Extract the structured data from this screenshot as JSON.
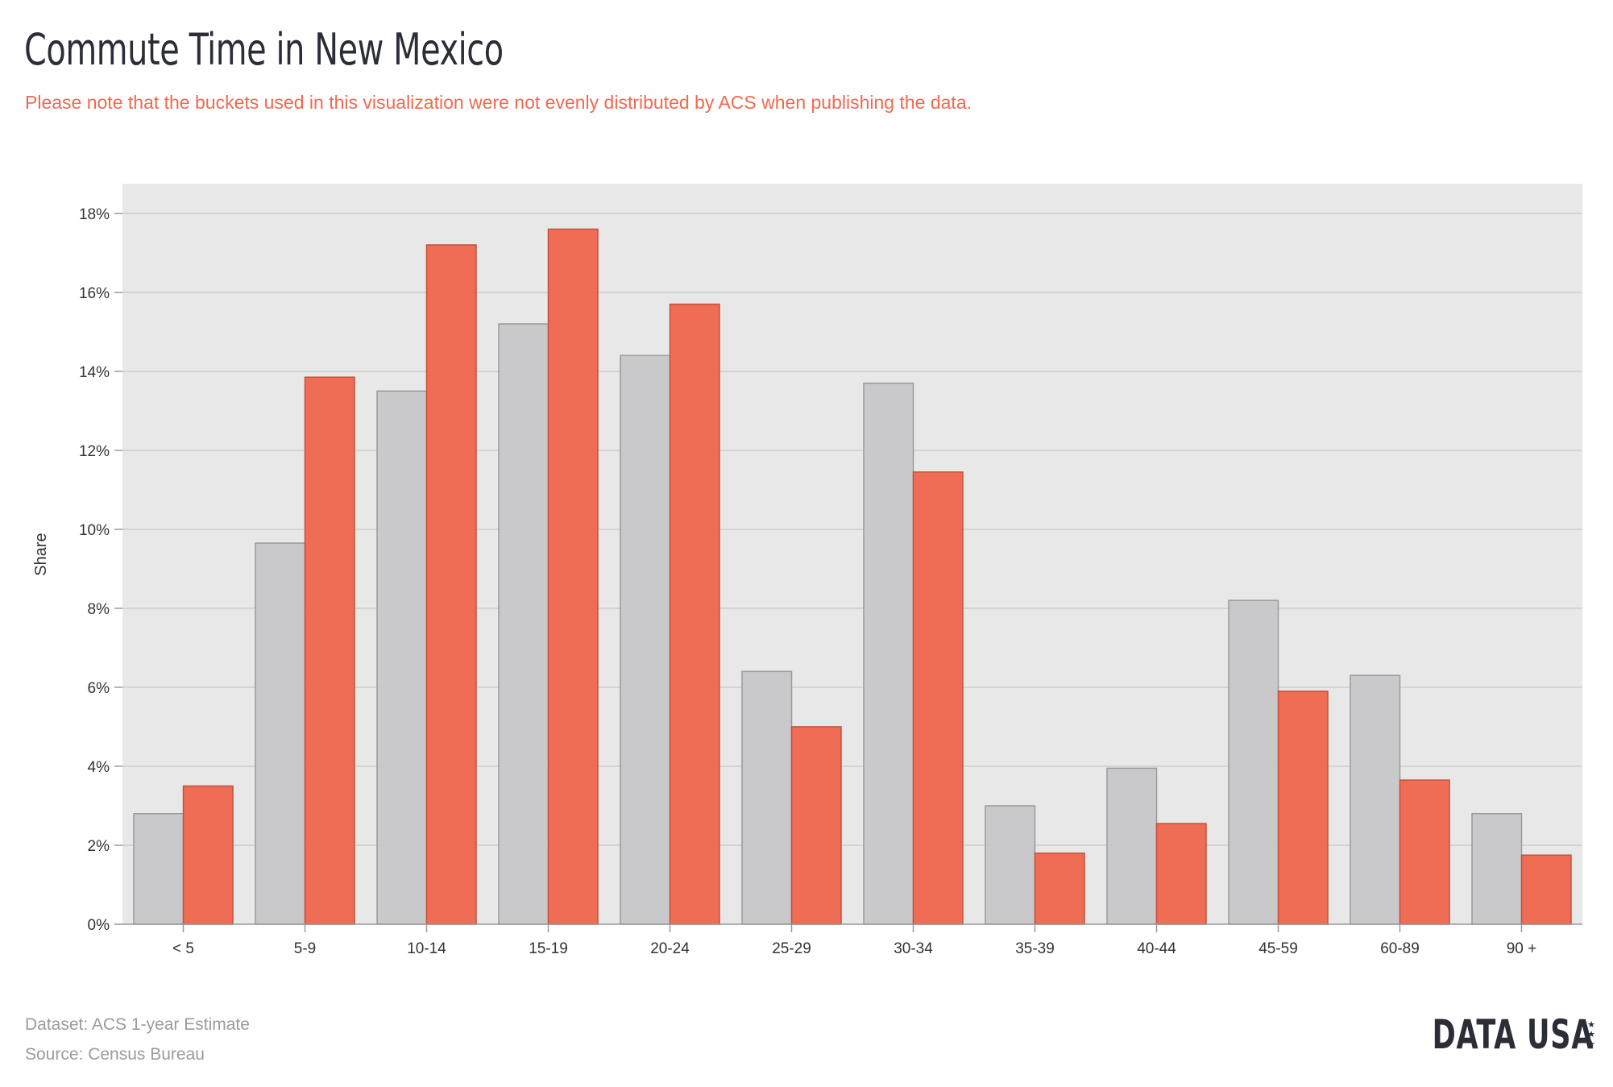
{
  "title": "Commute Time in New Mexico",
  "subtitle": "Please note that the buckets used in this visualization were not evenly distributed by ACS when publishing the data.",
  "footer": {
    "dataset": "Dataset: ACS 1-year Estimate",
    "source": "Source: Census Bureau",
    "logo": "DATA USA",
    "logo_icon": "stars-icon"
  },
  "colors": {
    "plot_background": "#e8e8e8",
    "gridline": "#cccccc",
    "series_gray": "#c8c8ca",
    "series_gray_stroke": "#9a9a9c",
    "series_red": "#ef6a51",
    "series_red_stroke": "#c4523d",
    "subtitle": "#ef6a51",
    "title": "#2b2d37"
  },
  "chart_data": {
    "type": "bar",
    "categories": [
      "< 5",
      "5-9",
      "10-14",
      "15-19",
      "20-24",
      "25-29",
      "30-34",
      "35-39",
      "40-44",
      "45-59",
      "60-89",
      "90 +"
    ],
    "series": [
      {
        "values": [
          2.8,
          9.65,
          13.5,
          15.2,
          14.4,
          6.4,
          13.7,
          3.0,
          3.95,
          8.2,
          6.3,
          2.8
        ]
      },
      {
        "values": [
          3.5,
          13.85,
          17.2,
          17.6,
          15.7,
          5.0,
          11.45,
          1.8,
          2.55,
          5.9,
          3.65,
          1.75
        ]
      }
    ],
    "xlabel": "",
    "ylabel": "Share",
    "ylim": [
      0,
      18.75
    ],
    "yticks": [
      0,
      2,
      4,
      6,
      8,
      10,
      12,
      14,
      16,
      18
    ],
    "ytick_suffix": "%",
    "grid": true,
    "legend": "none"
  }
}
